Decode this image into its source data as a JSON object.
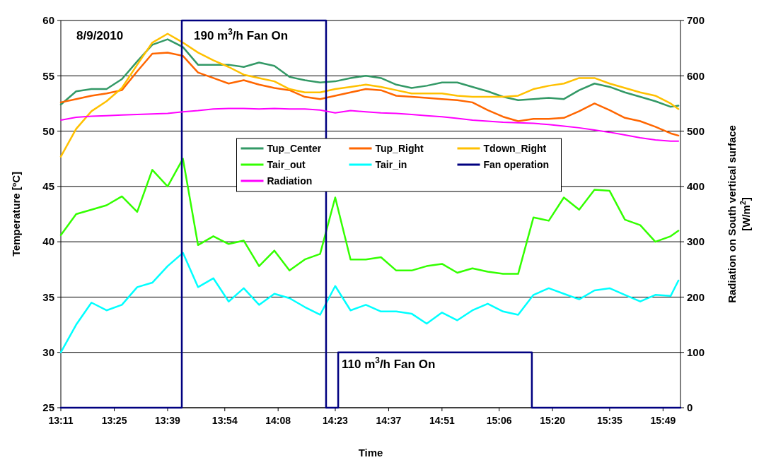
{
  "chart_data": {
    "type": "line",
    "xlabel": "Time",
    "ylabel": "Temperature [ºC]",
    "y2label": "Radiation on South vertical surface [W/m$^{2}$]",
    "x": [
      13.183,
      13.25,
      13.317,
      13.383,
      13.45,
      13.517,
      13.583,
      13.65,
      13.717,
      13.783,
      13.85,
      13.917,
      13.983,
      14.05,
      14.117,
      14.183,
      14.25,
      14.317,
      14.383,
      14.45,
      14.517,
      14.583,
      14.65,
      14.717,
      14.783,
      14.85,
      14.917,
      14.983,
      15.05,
      15.117,
      15.183,
      15.25,
      15.317,
      15.383,
      15.45,
      15.517,
      15.583,
      15.65,
      15.717,
      15.783,
      15.85,
      15.884
    ],
    "xlim": [
      13.183,
      15.893
    ],
    "xticks": [
      {
        "value": 13.183,
        "label": "13:11"
      },
      {
        "value": 13.4167,
        "label": "13:25"
      },
      {
        "value": 13.65,
        "label": "13:39"
      },
      {
        "value": 13.9,
        "label": "13:54"
      },
      {
        "value": 14.1333,
        "label": "14:08"
      },
      {
        "value": 14.3833,
        "label": "14:23"
      },
      {
        "value": 14.6167,
        "label": "14:37"
      },
      {
        "value": 14.85,
        "label": "14:51"
      },
      {
        "value": 15.1,
        "label": "15:06"
      },
      {
        "value": 15.3333,
        "label": "15:20"
      },
      {
        "value": 15.5833,
        "label": "15:35"
      },
      {
        "value": 15.8167,
        "label": "15:49"
      }
    ],
    "ylim": [
      25,
      60
    ],
    "yticks": [
      25,
      30,
      35,
      40,
      45,
      50,
      55,
      60
    ],
    "y2lim": [
      0,
      700
    ],
    "y2ticks": [
      0,
      100,
      200,
      300,
      400,
      500,
      600,
      700
    ],
    "grid": "y",
    "legend": "center",
    "marker": "none",
    "line_style": "solid",
    "series": [
      {
        "name": "Tup_Center",
        "color": "#339966",
        "values": [
          52.4,
          53.6,
          53.8,
          53.8,
          54.7,
          56.3,
          57.8,
          58.3,
          57.6,
          56.0,
          56.0,
          56.0,
          55.8,
          56.2,
          55.9,
          54.9,
          54.6,
          54.4,
          54.5,
          54.8,
          55.0,
          54.8,
          54.2,
          53.9,
          54.1,
          54.4,
          54.4,
          54.0,
          53.6,
          53.1,
          52.8,
          52.9,
          53.0,
          52.9,
          53.7,
          54.3,
          54.0,
          53.5,
          53.1,
          52.7,
          52.2,
          52.3
        ]
      },
      {
        "name": "Tup_Right",
        "color": "#ff6600",
        "values": [
          52.6,
          52.9,
          53.2,
          53.4,
          53.7,
          55.4,
          57.0,
          57.1,
          56.8,
          55.3,
          54.8,
          54.3,
          54.6,
          54.2,
          53.9,
          53.7,
          53.1,
          52.9,
          53.2,
          53.5,
          53.8,
          53.7,
          53.2,
          53.1,
          53.0,
          52.9,
          52.8,
          52.6,
          51.9,
          51.3,
          50.9,
          51.1,
          51.1,
          51.2,
          51.8,
          52.5,
          51.9,
          51.2,
          50.9,
          50.4,
          49.8,
          49.6
        ]
      },
      {
        "name": "Tdown_Right",
        "color": "#ffc000",
        "values": [
          47.7,
          50.2,
          51.8,
          52.7,
          53.9,
          56.0,
          58.0,
          58.8,
          58.0,
          57.1,
          56.4,
          55.8,
          55.1,
          54.8,
          54.5,
          53.8,
          53.5,
          53.5,
          53.8,
          54.0,
          54.2,
          54.0,
          53.7,
          53.4,
          53.4,
          53.4,
          53.2,
          53.1,
          53.1,
          53.1,
          53.2,
          53.8,
          54.1,
          54.3,
          54.8,
          54.8,
          54.3,
          53.9,
          53.5,
          53.2,
          52.5,
          52.0
        ]
      },
      {
        "name": "Tair_out",
        "color": "#33ff00",
        "values": [
          40.6,
          42.5,
          42.9,
          43.3,
          44.1,
          42.7,
          46.5,
          45.0,
          47.5,
          39.7,
          40.5,
          39.8,
          40.1,
          37.8,
          39.2,
          37.4,
          38.4,
          38.9,
          44.0,
          38.4,
          38.4,
          38.6,
          37.4,
          37.4,
          37.8,
          38.0,
          37.2,
          37.6,
          37.3,
          37.1,
          37.1,
          42.2,
          41.9,
          44.0,
          42.9,
          44.7,
          44.6,
          42.0,
          41.5,
          40.0,
          40.5,
          41.0
        ]
      },
      {
        "name": "Tair_in",
        "color": "#00ffff",
        "values": [
          30.0,
          32.5,
          34.5,
          33.8,
          34.3,
          35.9,
          36.3,
          37.8,
          39.0,
          35.9,
          36.7,
          34.6,
          35.8,
          34.3,
          35.3,
          34.9,
          34.1,
          33.4,
          36.0,
          33.8,
          34.3,
          33.7,
          33.7,
          33.5,
          32.6,
          33.6,
          32.9,
          33.8,
          34.4,
          33.7,
          33.4,
          35.2,
          35.8,
          35.3,
          34.8,
          35.6,
          35.8,
          35.2,
          34.6,
          35.2,
          35.1,
          36.5
        ]
      },
      {
        "name": "Fan operation",
        "color": "#000080",
        "x": [
          13.183,
          13.712,
          13.712,
          14.343,
          14.343,
          14.396,
          14.396,
          15.243,
          15.243,
          15.893
        ],
        "values": [
          25,
          25,
          60,
          60,
          25,
          25,
          30,
          30,
          25,
          25
        ]
      },
      {
        "name": "Radiation",
        "color": "#ff00ff",
        "axis": "y2",
        "values": [
          520,
          525,
          527,
          528,
          529,
          530,
          531,
          532,
          535,
          537,
          540,
          541,
          541,
          540,
          541,
          540,
          540,
          538,
          533,
          537,
          535,
          533,
          532,
          530,
          528,
          526,
          523,
          520,
          518,
          516,
          515,
          514,
          512,
          509,
          506,
          502,
          498,
          493,
          488,
          484,
          482,
          482
        ]
      }
    ],
    "annotations": [
      "8/9/2010",
      "190 m$^{3}$/h Fan On",
      "110 m$^{3}$/h Fan On"
    ]
  }
}
